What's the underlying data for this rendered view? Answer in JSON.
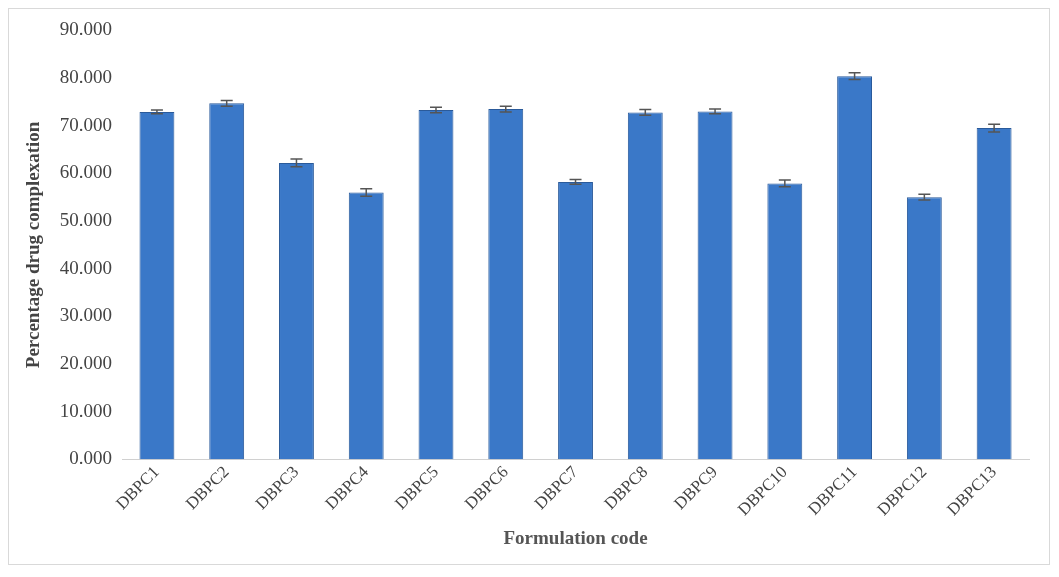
{
  "chart_data": {
    "type": "bar",
    "xlabel": "Formulation code",
    "ylabel": "Percentage drug complexation",
    "categories": [
      "DBPC1",
      "DBPC2",
      "DBPC3",
      "DBPC4",
      "DBPC5",
      "DBPC6",
      "DBPC7",
      "DBPC8",
      "DBPC9",
      "DBPC10",
      "DBPC11",
      "DBPC12",
      "DBPC13"
    ],
    "values": [
      72.9,
      74.7,
      62.2,
      56.0,
      73.3,
      73.5,
      58.2,
      72.8,
      73.0,
      57.9,
      80.4,
      55.0,
      69.5
    ],
    "errors": [
      0.4,
      0.6,
      0.8,
      0.8,
      0.6,
      0.6,
      0.5,
      0.6,
      0.5,
      0.7,
      0.7,
      0.6,
      0.8
    ],
    "color": "#3a78c8",
    "ylim": [
      0,
      90
    ],
    "yticks": [
      {
        "value": 0,
        "label": "0.000"
      },
      {
        "value": 10,
        "label": "10.000"
      },
      {
        "value": 20,
        "label": "20.000"
      },
      {
        "value": 30,
        "label": "30.000"
      },
      {
        "value": 40,
        "label": "40.000"
      },
      {
        "value": 50,
        "label": "50.000"
      },
      {
        "value": 60,
        "label": "60.000"
      },
      {
        "value": 70,
        "label": "70.000"
      },
      {
        "value": 80,
        "label": "80.000"
      },
      {
        "value": 90,
        "label": "90.000"
      }
    ],
    "grid": false,
    "legend": false
  }
}
